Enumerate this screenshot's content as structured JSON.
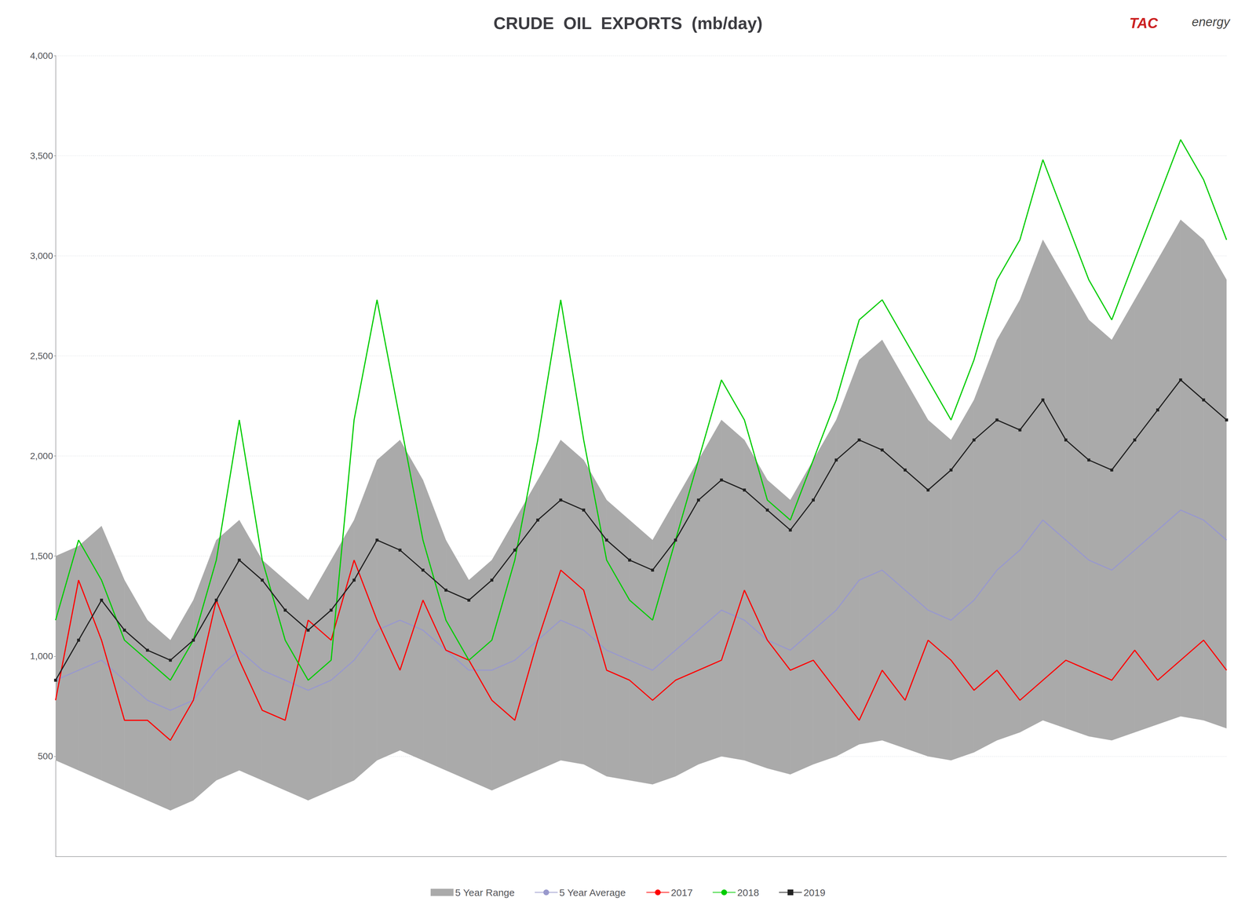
{
  "chart_data": {
    "type": "line",
    "title": "CRUDE  OIL  EXPORTS  (mb/day)",
    "x": [
      1,
      2,
      3,
      4,
      5,
      6,
      7,
      8,
      9,
      10,
      11,
      12,
      13,
      14,
      15,
      16,
      17,
      18,
      19,
      20,
      21,
      22,
      23,
      24,
      25,
      26,
      27,
      28,
      29,
      30,
      31,
      32,
      33,
      34,
      35,
      36,
      37,
      38,
      39,
      40,
      41,
      42,
      43,
      44,
      45,
      46,
      47,
      48,
      49,
      50,
      51,
      52
    ],
    "xlim": [
      1,
      52
    ],
    "ylim": [
      0,
      4000
    ],
    "yticks": [
      500,
      {
        "value": 1000,
        "label": "1,000"
      },
      {
        "value": 1500,
        "label": "1,500"
      },
      {
        "value": 2000,
        "label": "2,000"
      },
      {
        "value": 2500,
        "label": "2,500"
      },
      {
        "value": 3000,
        "label": "3,000"
      },
      {
        "value": 3500,
        "label": "3,500"
      },
      {
        "value": 4000,
        "label": "4,000"
      }
    ],
    "tick_labels": "y",
    "grid": true,
    "legend": "bottom",
    "series": [
      {
        "name": "5 Year Range",
        "type": "band",
        "color": "#aaaaaa",
        "low": [
          480,
          430,
          380,
          330,
          280,
          230,
          280,
          380,
          430,
          380,
          330,
          280,
          330,
          380,
          480,
          530,
          480,
          430,
          380,
          330,
          380,
          430,
          480,
          460,
          400,
          380,
          360,
          400,
          460,
          500,
          480,
          440,
          410,
          460,
          500,
          560,
          580,
          540,
          500,
          480,
          520,
          580,
          620,
          680,
          640,
          600,
          580,
          620,
          660,
          700,
          680,
          640
        ],
        "high": [
          1500,
          1550,
          1650,
          1380,
          1180,
          1080,
          1280,
          1580,
          1680,
          1480,
          1380,
          1280,
          1480,
          1680,
          1980,
          2080,
          1880,
          1580,
          1380,
          1480,
          1680,
          1880,
          2080,
          1980,
          1780,
          1680,
          1580,
          1780,
          1980,
          2180,
          2080,
          1880,
          1780,
          1980,
          2180,
          2480,
          2580,
          2380,
          2180,
          2080,
          2280,
          2580,
          2780,
          3080,
          2880,
          2680,
          2580,
          2780,
          2980,
          3180,
          3080,
          2880
        ]
      },
      {
        "name": "5 Year Average",
        "type": "line",
        "color": "#9999cc",
        "values": [
          880,
          930,
          980,
          880,
          780,
          730,
          780,
          930,
          1030,
          930,
          880,
          830,
          880,
          980,
          1130,
          1180,
          1130,
          1030,
          930,
          930,
          980,
          1080,
          1180,
          1130,
          1030,
          980,
          930,
          1030,
          1130,
          1230,
          1180,
          1080,
          1030,
          1130,
          1230,
          1380,
          1430,
          1330,
          1230,
          1180,
          1280,
          1430,
          1530,
          1680,
          1580,
          1480,
          1430,
          1530,
          1630,
          1730,
          1680,
          1580
        ]
      },
      {
        "name": "2017",
        "type": "line",
        "color": "#ff0000",
        "values": [
          780,
          1380,
          1080,
          680,
          680,
          580,
          780,
          1280,
          980,
          730,
          680,
          1180,
          1080,
          1480,
          1180,
          930,
          1280,
          1030,
          980,
          780,
          680,
          1080,
          1430,
          1330,
          930,
          880,
          780,
          880,
          930,
          980,
          1330,
          1080,
          930,
          980,
          830,
          680,
          930,
          780,
          1080,
          980,
          830,
          930,
          780,
          880,
          980,
          930,
          880,
          1030,
          880,
          980,
          1080,
          930
        ]
      },
      {
        "name": "2018",
        "type": "line",
        "color": "#00cc00",
        "values": [
          1180,
          1580,
          1380,
          1080,
          980,
          880,
          1080,
          1480,
          2180,
          1480,
          1080,
          880,
          980,
          2180,
          2780,
          2180,
          1580,
          1180,
          980,
          1080,
          1480,
          2080,
          2780,
          2080,
          1480,
          1280,
          1180,
          1580,
          1980,
          2380,
          2180,
          1780,
          1680,
          1980,
          2280,
          2680,
          2780,
          2580,
          2380,
          2180,
          2480,
          2880,
          3080,
          3480,
          3180,
          2880,
          2680,
          2980,
          3280,
          3580,
          3380,
          3080
        ]
      },
      {
        "name": "2019",
        "type": "line",
        "color": "#222222",
        "marker": "square",
        "values": [
          880,
          1080,
          1280,
          1130,
          1030,
          980,
          1080,
          1280,
          1480,
          1380,
          1230,
          1130,
          1230,
          1380,
          1580,
          1530,
          1430,
          1330,
          1280,
          1380,
          1530,
          1680,
          1780,
          1730,
          1580,
          1480,
          1430,
          1580,
          1780,
          1880,
          1830,
          1730,
          1630,
          1780,
          1980,
          2080,
          2030,
          1930,
          1830,
          1930,
          2080,
          2180,
          2130,
          2280,
          2080,
          1980,
          1930,
          2080,
          2230,
          2380,
          2280,
          2180
        ]
      }
    ],
    "annotations": [
      {
        "text": "TAC",
        "color": "#cc2222"
      },
      {
        "text": "energy",
        "color": "#444444"
      }
    ]
  }
}
